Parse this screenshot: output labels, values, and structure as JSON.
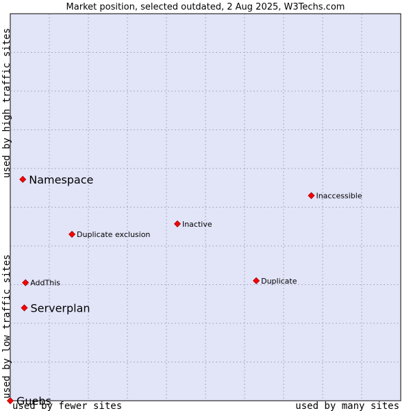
{
  "chart_data": {
    "type": "scatter",
    "title": "Market position, selected outdated, 2 Aug 2025, W3Techs.com",
    "xlabel_left": "used by fewer sites",
    "xlabel_right": "used by many sites",
    "ylabel_top": "used by high traffic sites",
    "ylabel_bottom": "used by low traffic sites",
    "xlim": [
      0,
      100
    ],
    "ylim": [
      0,
      100
    ],
    "grid": true,
    "colors": {
      "plot_background": "#e2e4f8",
      "grid": "#a8aac4",
      "border": "#000000",
      "marker_fill": "#ff0000",
      "marker_stroke": "#990000",
      "muted_label": "#666666"
    },
    "points": [
      {
        "label": "Namespace",
        "x": 3.2,
        "y": 57.2,
        "size": "large"
      },
      {
        "label": "Inaccessible",
        "x": 77.1,
        "y": 53.0,
        "size": "small"
      },
      {
        "label": "Inactive",
        "x": 42.8,
        "y": 45.7,
        "size": "small"
      },
      {
        "label": "Duplicate exclusion",
        "x": 15.8,
        "y": 43.0,
        "size": "small"
      },
      {
        "label": "AddThis",
        "x": 3.9,
        "y": 30.5,
        "size": "small"
      },
      {
        "label": "Duplicate",
        "x": 63.0,
        "y": 31.0,
        "size": "small"
      },
      {
        "label": "Serverplan",
        "x": 3.6,
        "y": 24.0,
        "size": "large"
      },
      {
        "label": "Guebs",
        "x": 0.0,
        "y": 0.0,
        "size": "large",
        "muted": true
      }
    ]
  }
}
